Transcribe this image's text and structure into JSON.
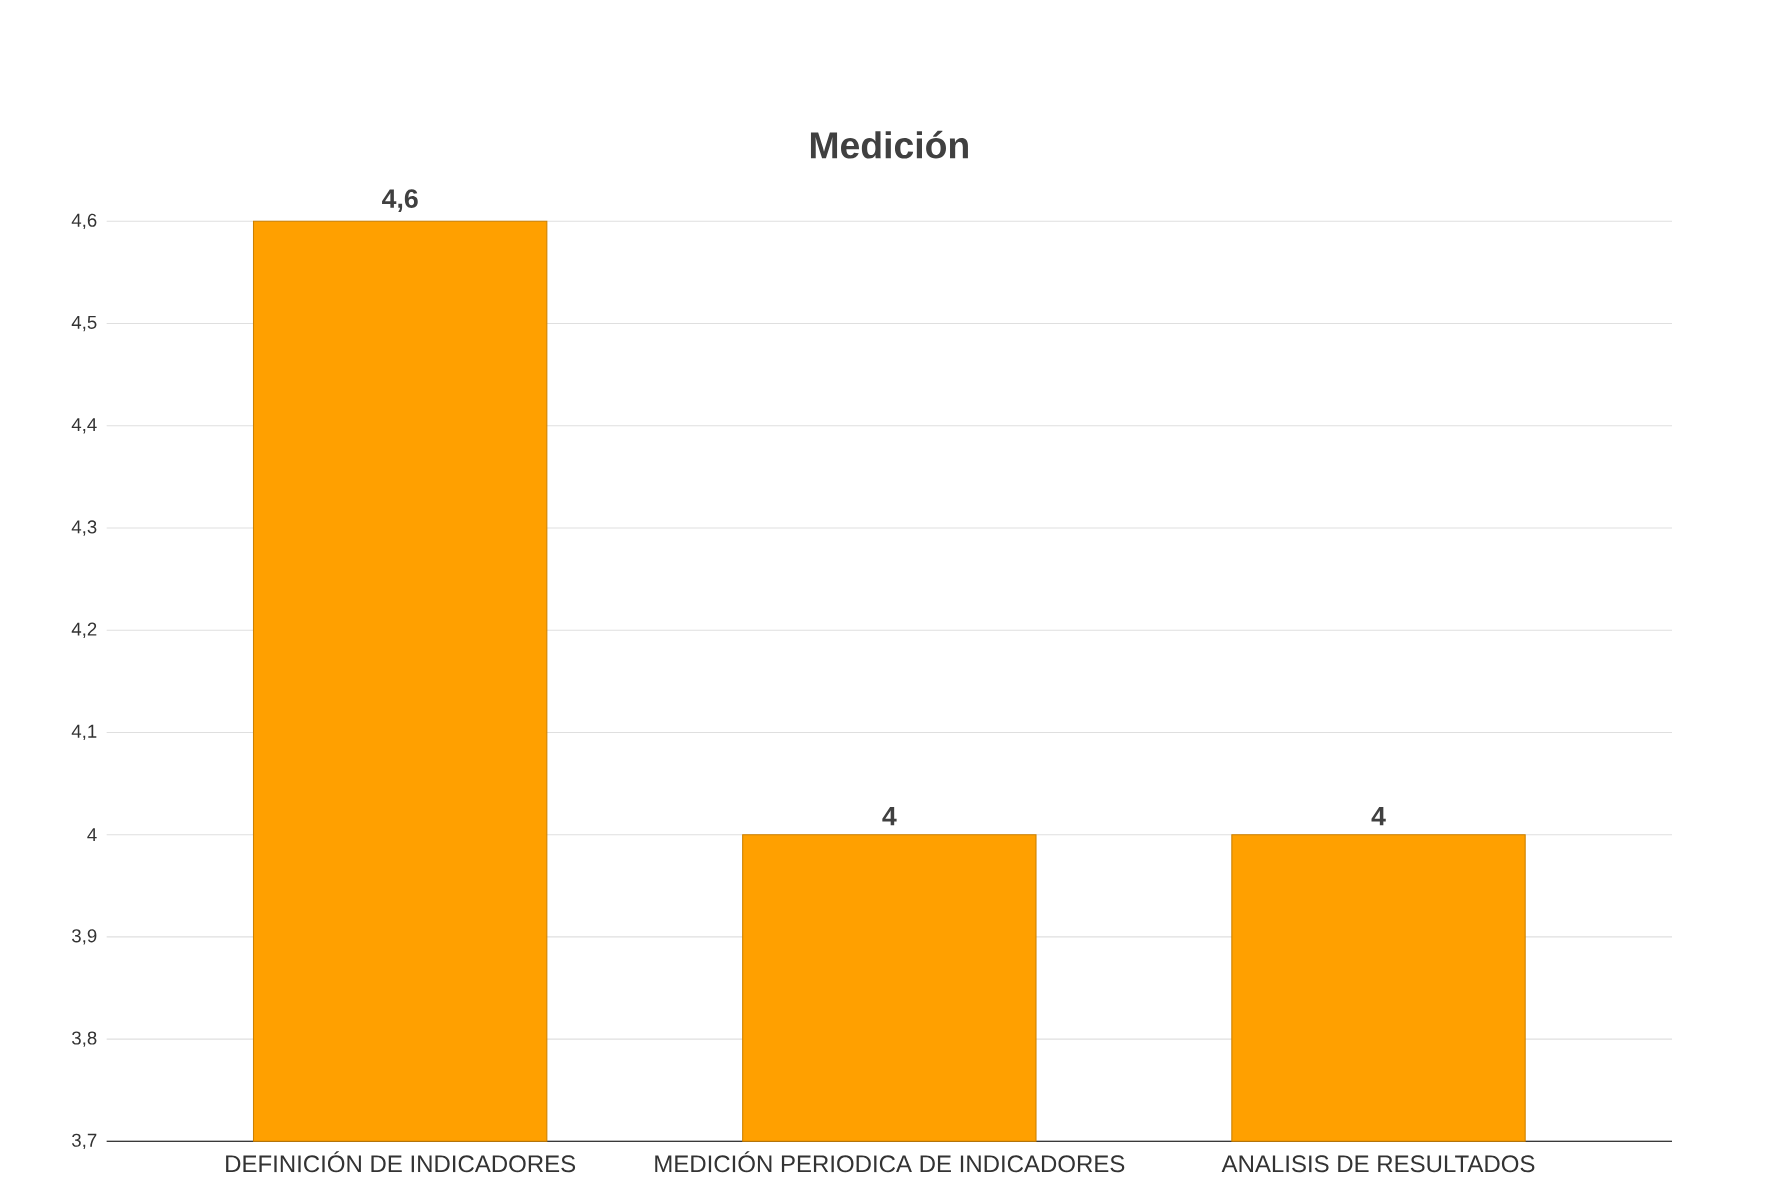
{
  "chart_data": {
    "type": "bar",
    "title": "Medición",
    "categories": [
      "DEFINICIÓN DE INDICADORES",
      "MEDICIÓN PERIODICA DE INDICADORES",
      "ANALISIS DE RESULTADOS"
    ],
    "values": [
      4.6,
      4,
      4
    ],
    "value_labels": [
      "4,6",
      "4",
      "4"
    ],
    "color": "#ffa000",
    "ylim": [
      3.7,
      4.6
    ],
    "yticks": [
      {
        "value": 3.7,
        "label": "3,7"
      },
      {
        "value": 3.8,
        "label": "3,8"
      },
      {
        "value": 3.9,
        "label": "3,9"
      },
      {
        "value": 4,
        "label": "4"
      },
      {
        "value": 4.1,
        "label": "4,1"
      },
      {
        "value": 4.2,
        "label": "4,2"
      },
      {
        "value": 4.3,
        "label": "4,3"
      },
      {
        "value": 4.4,
        "label": "4,4"
      },
      {
        "value": 4.5,
        "label": "4,5"
      },
      {
        "value": 4.6,
        "label": "4,6"
      }
    ],
    "grid": "y"
  }
}
